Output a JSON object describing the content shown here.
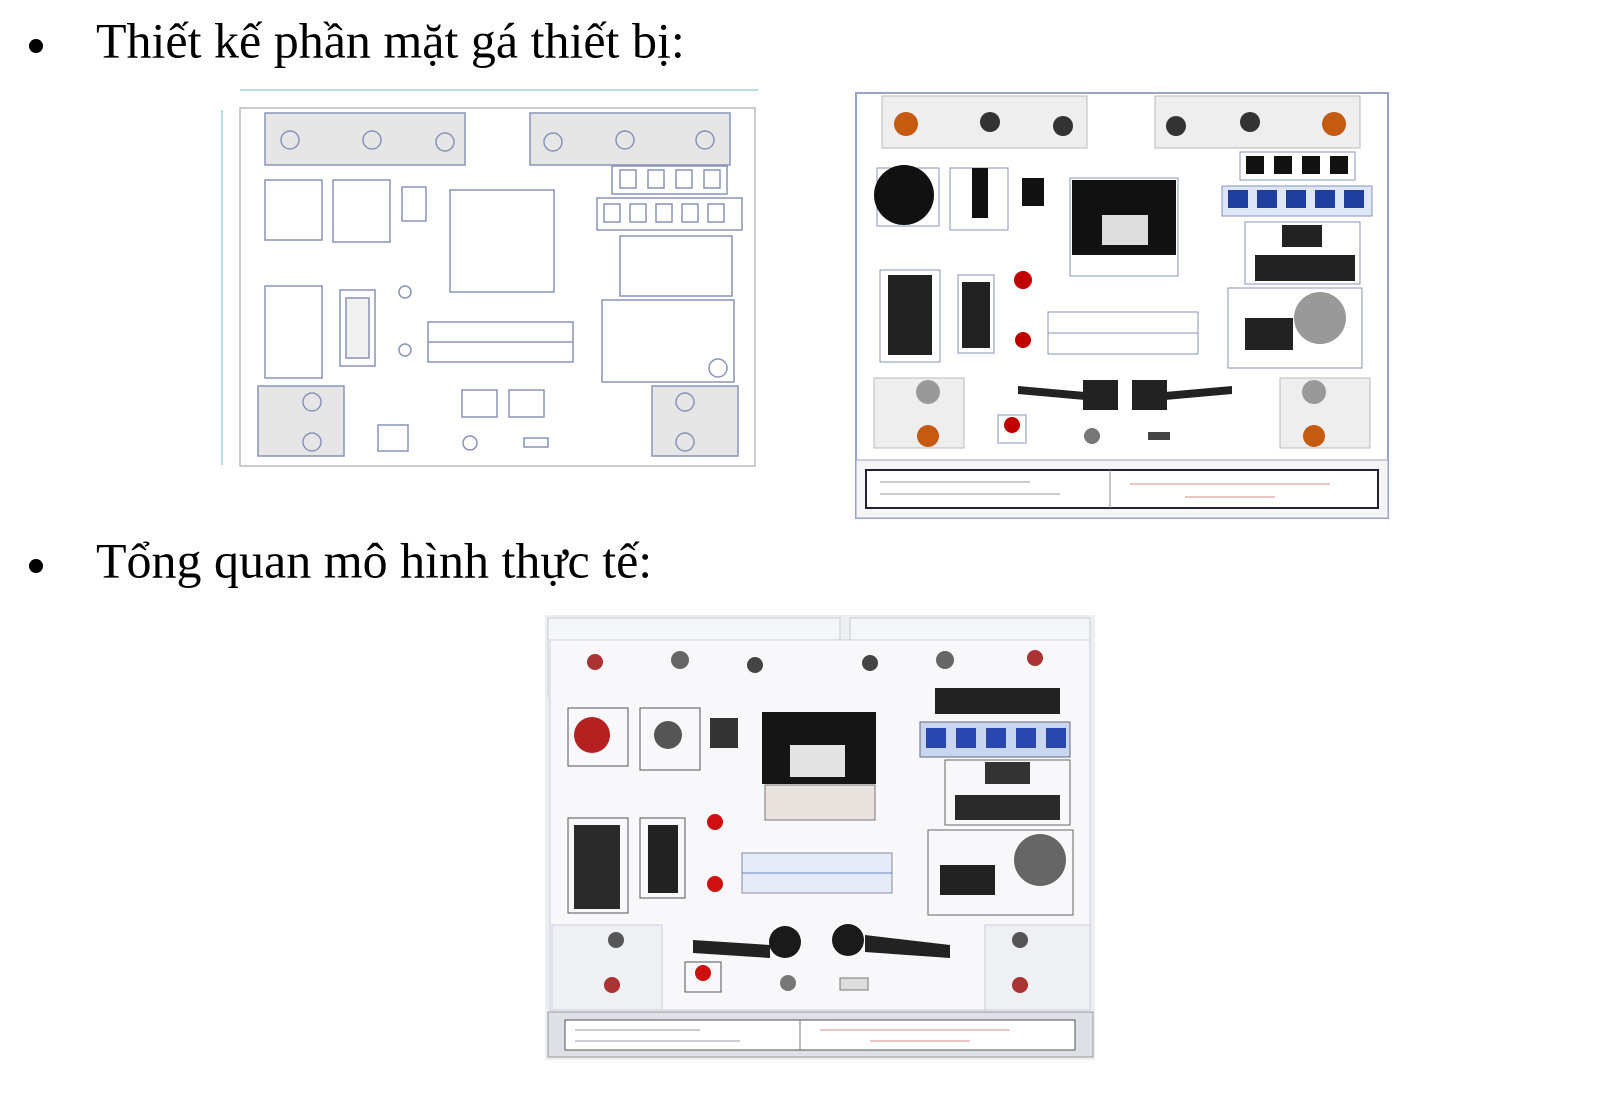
{
  "bullets": [
    {
      "text": "Thiết kế phần mặt gá thiết bị:"
    },
    {
      "text": "Tổng quan mô hình thực tế:"
    }
  ]
}
